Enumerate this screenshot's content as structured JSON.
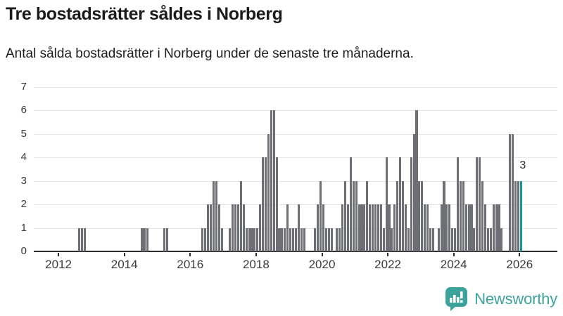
{
  "chart_data": {
    "type": "bar",
    "title": "Tre bostadsrätter såldes i Norberg",
    "subtitle": "Antal sålda bostadsrätter i Norberg under de senaste tre månaderna.",
    "grid": true,
    "legend": false,
    "y_axis": {
      "min": 0,
      "max": 7,
      "ticks": [
        0,
        1,
        2,
        3,
        4,
        5,
        6,
        7
      ]
    },
    "x_axis": {
      "tick_years": [
        "2012",
        "2014",
        "2016",
        "2018",
        "2020",
        "2022",
        "2024",
        "2026"
      ]
    },
    "start_month": "2011-04",
    "values_by_year": {
      "2011": [
        0,
        0,
        0,
        0,
        0,
        0,
        0,
        0,
        0
      ],
      "2012": [
        0,
        0,
        0,
        0,
        0,
        0,
        0,
        1,
        1,
        1,
        0,
        0
      ],
      "2013": [
        0,
        0,
        0,
        0,
        0,
        0,
        0,
        0,
        0,
        0,
        0,
        0
      ],
      "2014": [
        0,
        0,
        0,
        0,
        0,
        0,
        1,
        1,
        1,
        0,
        0,
        0
      ],
      "2015": [
        0,
        0,
        1,
        1,
        0,
        0,
        0,
        0,
        0,
        0,
        0,
        0
      ],
      "2016": [
        0,
        0,
        0,
        0,
        1,
        1,
        2,
        2,
        3,
        3,
        2,
        1
      ],
      "2017": [
        0,
        0,
        1,
        2,
        2,
        2,
        3,
        2,
        1,
        1,
        1,
        1
      ],
      "2018": [
        1,
        2,
        4,
        4,
        5,
        6,
        6,
        4,
        1,
        1,
        1,
        2
      ],
      "2019": [
        1,
        1,
        1,
        2,
        1,
        1,
        0,
        0,
        0,
        1,
        2,
        3
      ],
      "2020": [
        2,
        1,
        1,
        1,
        0,
        1,
        1,
        2,
        3,
        2,
        4,
        3
      ],
      "2021": [
        3,
        2,
        2,
        2,
        3,
        2,
        2,
        2,
        2,
        2,
        1,
        4
      ],
      "2022": [
        2,
        1,
        2,
        3,
        4,
        3,
        2,
        1,
        4,
        5,
        6,
        3
      ],
      "2023": [
        3,
        2,
        2,
        1,
        1,
        0,
        1,
        2,
        3,
        2,
        2,
        1
      ],
      "2024": [
        1,
        4,
        3,
        3,
        2,
        2,
        2,
        1,
        4,
        4,
        3,
        2
      ],
      "2025": [
        1,
        1,
        2,
        2,
        2,
        1,
        0,
        0,
        5,
        5,
        3,
        3
      ],
      "2026": [
        3
      ]
    },
    "highlight": {
      "month": "2026-01",
      "value": 3,
      "data_label": "3"
    }
  },
  "colors": {
    "bar": "#6e6e76",
    "highlight_bar": "#119c99",
    "gridline": "#e7e7e7",
    "axis_line": "#2d2d2d",
    "tick_label": "#3a3a3a",
    "title": "#1b1b1b",
    "annotation": "#2e2e2e",
    "brand_teal": "#3ba39c",
    "background": "#ffffff"
  },
  "footer": {
    "brand": "Newsworthy"
  }
}
